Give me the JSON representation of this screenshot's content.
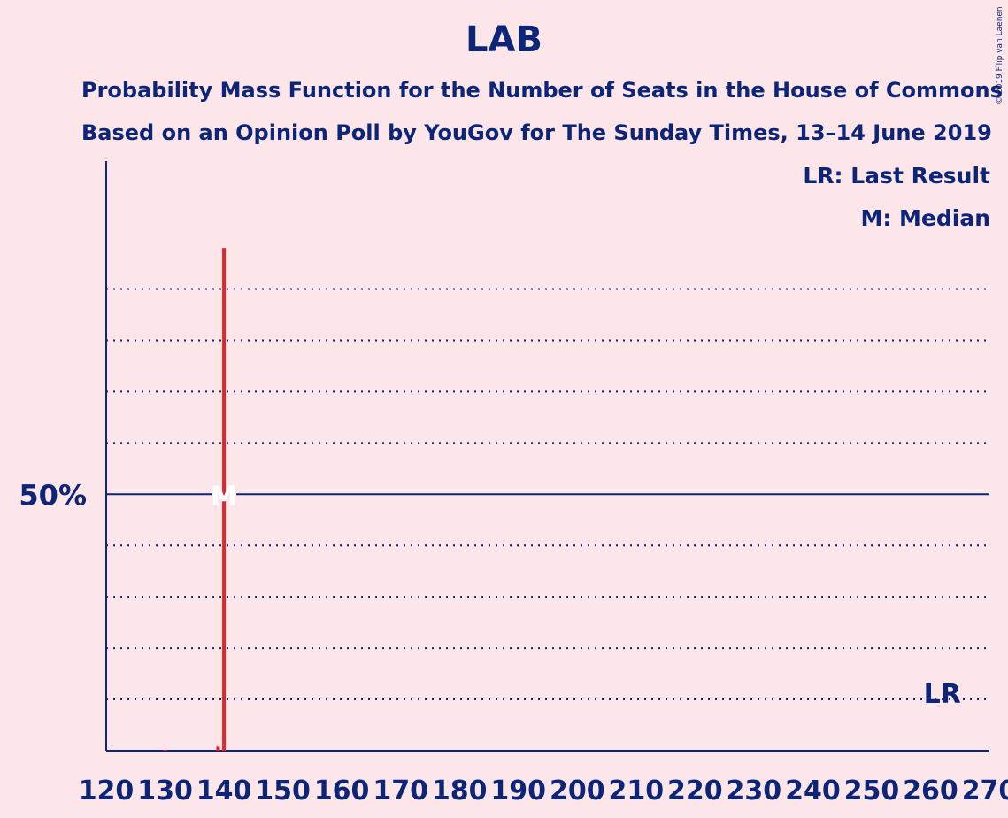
{
  "title": "LAB",
  "subtitle_line1": "Probability Mass Function for the Number of Seats in the House of Commons",
  "subtitle_line2": "Based on an Opinion Poll by YouGov for The Sunday Times, 13–14 June 2019",
  "copyright": "© 2019 Filip van Laenen",
  "legend": {
    "last_result": "LR: Last Result",
    "median": "M: Median"
  },
  "colors": {
    "background": "#fde6ea",
    "axis": "#0c2577",
    "bar": "#e0262b",
    "median_marker": "#ffffff"
  },
  "chart_data": {
    "type": "bar",
    "x_ticks": [
      120,
      130,
      140,
      150,
      160,
      170,
      180,
      190,
      200,
      210,
      220,
      230,
      240,
      250,
      260,
      270
    ],
    "xlim": [
      120,
      270
    ],
    "ylim": [
      0,
      1.07
    ],
    "y_tick_label": "50%",
    "y_tick_value": 0.5,
    "gridlines": [
      0.1,
      0.2,
      0.3,
      0.4,
      0.6,
      0.7,
      0.8,
      0.9
    ],
    "points": [
      {
        "x": 130,
        "y": 0.0005
      },
      {
        "x": 139,
        "y": 0.008
      },
      {
        "x": 140,
        "y": 0.98
      }
    ],
    "median": 140,
    "median_label": "M",
    "last_result": 262,
    "last_result_label": "LR"
  }
}
